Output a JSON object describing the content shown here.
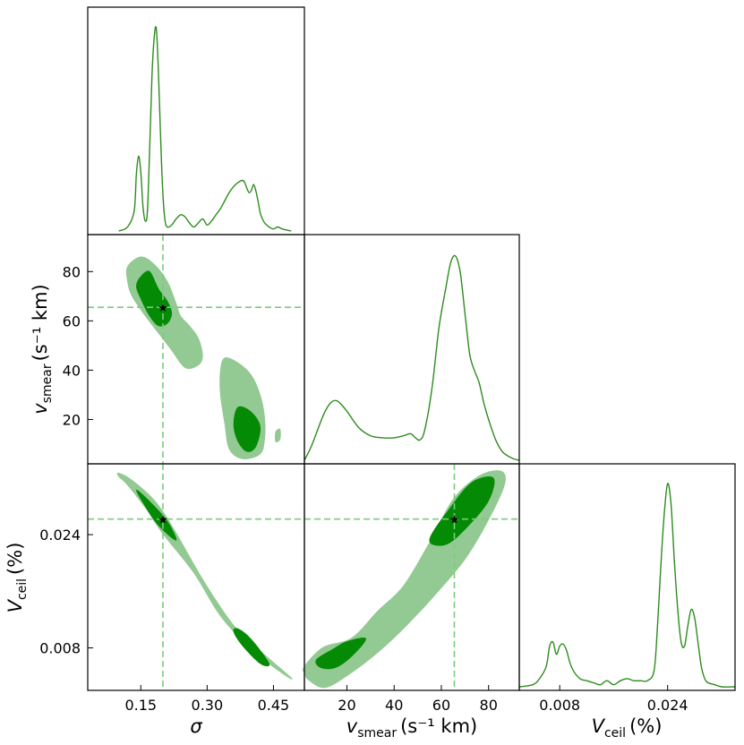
{
  "chart_data": [
    {
      "type": "line",
      "panel": "sigma-marginal",
      "x_param": "sigma",
      "xlim": [
        0.03,
        0.52
      ],
      "x": [
        0.1,
        0.12,
        0.135,
        0.14,
        0.145,
        0.15,
        0.155,
        0.16,
        0.165,
        0.17,
        0.175,
        0.18,
        0.185,
        0.19,
        0.195,
        0.2,
        0.205,
        0.21,
        0.22,
        0.23,
        0.24,
        0.25,
        0.26,
        0.27,
        0.28,
        0.29,
        0.3,
        0.31,
        0.32,
        0.33,
        0.34,
        0.35,
        0.36,
        0.37,
        0.38,
        0.385,
        0.39,
        0.395,
        0.4,
        0.405,
        0.41,
        0.415,
        0.42,
        0.425,
        0.43,
        0.435,
        0.44,
        0.45,
        0.46,
        0.47,
        0.49
      ],
      "density": [
        0.0,
        0.02,
        0.1,
        0.28,
        0.37,
        0.29,
        0.12,
        0.05,
        0.1,
        0.4,
        0.75,
        0.95,
        1.0,
        0.78,
        0.45,
        0.18,
        0.05,
        0.02,
        0.03,
        0.06,
        0.08,
        0.07,
        0.04,
        0.02,
        0.04,
        0.06,
        0.03,
        0.05,
        0.08,
        0.11,
        0.15,
        0.19,
        0.22,
        0.24,
        0.25,
        0.24,
        0.21,
        0.19,
        0.2,
        0.23,
        0.2,
        0.15,
        0.09,
        0.06,
        0.04,
        0.03,
        0.02,
        0.01,
        0.02,
        0.01,
        0.0
      ]
    },
    {
      "type": "line",
      "panel": "vsmear-marginal",
      "x_param": "vsmear",
      "xlim": [
        2,
        93
      ],
      "x": [
        2,
        5,
        10,
        13,
        16,
        20,
        25,
        30,
        35,
        40,
        44,
        47,
        49,
        51,
        53,
        56,
        59,
        62,
        64,
        66,
        68,
        70,
        72,
        74,
        76,
        78,
        80,
        83,
        86,
        90,
        93
      ],
      "density": [
        0.0,
        0.07,
        0.22,
        0.28,
        0.29,
        0.24,
        0.16,
        0.12,
        0.11,
        0.11,
        0.12,
        0.13,
        0.11,
        0.1,
        0.15,
        0.35,
        0.65,
        0.85,
        0.97,
        1.0,
        0.92,
        0.72,
        0.52,
        0.44,
        0.38,
        0.28,
        0.2,
        0.1,
        0.04,
        0.01,
        0.0
      ]
    },
    {
      "type": "line",
      "panel": "vceil-marginal",
      "x_param": "vceil",
      "xlim": [
        0.002,
        0.034
      ],
      "x": [
        0.002,
        0.004,
        0.005,
        0.006,
        0.0065,
        0.007,
        0.0075,
        0.008,
        0.0085,
        0.009,
        0.0095,
        0.01,
        0.011,
        0.012,
        0.013,
        0.014,
        0.015,
        0.016,
        0.017,
        0.018,
        0.019,
        0.02,
        0.021,
        0.022,
        0.0225,
        0.023,
        0.0235,
        0.024,
        0.0245,
        0.025,
        0.0255,
        0.026,
        0.0265,
        0.027,
        0.0275,
        0.028,
        0.0285,
        0.029,
        0.0295,
        0.03,
        0.031,
        0.032,
        0.034
      ],
      "density": [
        0.0,
        0.01,
        0.04,
        0.1,
        0.2,
        0.22,
        0.16,
        0.2,
        0.21,
        0.18,
        0.12,
        0.08,
        0.04,
        0.03,
        0.02,
        0.01,
        0.03,
        0.01,
        0.03,
        0.04,
        0.03,
        0.03,
        0.03,
        0.08,
        0.3,
        0.6,
        0.85,
        1.0,
        0.9,
        0.62,
        0.38,
        0.22,
        0.2,
        0.3,
        0.38,
        0.34,
        0.22,
        0.1,
        0.04,
        0.02,
        0.01,
        0.0,
        0.0
      ]
    },
    {
      "type": "scatter",
      "panel": "sigma-vs-vsmear",
      "x_param": "sigma",
      "y_param": "vsmear",
      "xlim": [
        0.03,
        0.52
      ],
      "ylim": [
        2,
        95
      ],
      "truth": {
        "x": 0.2,
        "y": 65.5
      },
      "regions": [
        {
          "level": "outer",
          "points": [
            [
              0.12,
              82
            ],
            [
              0.15,
              86
            ],
            [
              0.18,
              83
            ],
            [
              0.21,
              76
            ],
            [
              0.23,
              67
            ],
            [
              0.24,
              62
            ],
            [
              0.26,
              58
            ],
            [
              0.28,
              53
            ],
            [
              0.29,
              46
            ],
            [
              0.28,
              42
            ],
            [
              0.25,
              41
            ],
            [
              0.22,
              48
            ],
            [
              0.19,
              55
            ],
            [
              0.16,
              62
            ],
            [
              0.13,
              70
            ],
            [
              0.12,
              76
            ]
          ]
        },
        {
          "level": "outer",
          "points": [
            [
              0.34,
              45
            ],
            [
              0.37,
              43
            ],
            [
              0.4,
              38
            ],
            [
              0.42,
              30
            ],
            [
              0.43,
              21
            ],
            [
              0.43,
              12
            ],
            [
              0.42,
              6
            ],
            [
              0.38,
              4
            ],
            [
              0.35,
              8
            ],
            [
              0.34,
              18
            ],
            [
              0.33,
              30
            ],
            [
              0.33,
              40
            ]
          ]
        },
        {
          "level": "outer",
          "points": [
            [
              0.455,
              15
            ],
            [
              0.465,
              16
            ],
            [
              0.465,
              12
            ],
            [
              0.455,
              11
            ]
          ]
        },
        {
          "level": "inner",
          "points": [
            [
              0.15,
              78
            ],
            [
              0.17,
              80
            ],
            [
              0.19,
              73
            ],
            [
              0.21,
              68
            ],
            [
              0.22,
              63
            ],
            [
              0.21,
              59
            ],
            [
              0.19,
              58
            ],
            [
              0.17,
              62
            ],
            [
              0.15,
              69
            ],
            [
              0.14,
              74
            ]
          ]
        },
        {
          "level": "inner",
          "points": [
            [
              0.37,
              25
            ],
            [
              0.4,
              23
            ],
            [
              0.42,
              17
            ],
            [
              0.41,
              9
            ],
            [
              0.39,
              7
            ],
            [
              0.37,
              11
            ],
            [
              0.36,
              18
            ]
          ]
        }
      ],
      "x_ticks": [
        "0.15",
        "0.30",
        "0.45"
      ],
      "y_ticks": [
        "20",
        "40",
        "60",
        "80"
      ],
      "ylabel": {
        "main": "v",
        "sub": "smear",
        "unit": "(s⁻¹ km)"
      }
    },
    {
      "type": "scatter",
      "panel": "sigma-vs-vceil",
      "x_param": "sigma",
      "y_param": "vceil",
      "xlim": [
        0.03,
        0.52
      ],
      "ylim": [
        0.002,
        0.034
      ],
      "truth": {
        "x": 0.2,
        "y": 0.0262
      },
      "regions": [
        {
          "level": "outer",
          "points": [
            [
              0.1,
              0.0327
            ],
            [
              0.13,
              0.0317
            ],
            [
              0.18,
              0.0289
            ],
            [
              0.22,
              0.0253
            ],
            [
              0.29,
              0.0177
            ],
            [
              0.36,
              0.0112
            ],
            [
              0.42,
              0.0076
            ],
            [
              0.49,
              0.0038
            ],
            [
              0.47,
              0.0044
            ],
            [
              0.4,
              0.0078
            ],
            [
              0.33,
              0.0125
            ],
            [
              0.27,
              0.0186
            ],
            [
              0.2,
              0.0241
            ],
            [
              0.16,
              0.0278
            ],
            [
              0.12,
              0.031
            ],
            [
              0.1,
              0.0322
            ]
          ]
        },
        {
          "level": "inner",
          "points": [
            [
              0.14,
              0.0303
            ],
            [
              0.17,
              0.0287
            ],
            [
              0.21,
              0.0259
            ],
            [
              0.23,
              0.0232
            ],
            [
              0.19,
              0.0253
            ],
            [
              0.16,
              0.028
            ]
          ]
        },
        {
          "level": "inner",
          "points": [
            [
              0.37,
              0.0107
            ],
            [
              0.4,
              0.0092
            ],
            [
              0.44,
              0.0058
            ],
            [
              0.42,
              0.0058
            ],
            [
              0.38,
              0.0083
            ],
            [
              0.36,
              0.0103
            ]
          ]
        }
      ],
      "x_ticks": [
        "0.15",
        "0.30",
        "0.45"
      ],
      "y_ticks": [
        "0.008",
        "0.024"
      ],
      "xlabel": "σ",
      "ylabel": {
        "main": "V",
        "sub": "ceil",
        "unit": "(%)"
      }
    },
    {
      "type": "scatter",
      "panel": "vsmear-vs-vceil",
      "x_param": "vsmear",
      "y_param": "vceil",
      "xlim": [
        2,
        93
      ],
      "ylim": [
        0.002,
        0.034
      ],
      "truth": {
        "x": 65.5,
        "y": 0.0262
      },
      "regions": [
        {
          "level": "outer",
          "points": [
            [
              2,
              0.0054
            ],
            [
              10,
              0.0081
            ],
            [
              22,
              0.0094
            ],
            [
              33,
              0.0132
            ],
            [
              44,
              0.0168
            ],
            [
              55,
              0.0229
            ],
            [
              65,
              0.029
            ],
            [
              76,
              0.0323
            ],
            [
              85,
              0.033
            ],
            [
              87,
              0.0314
            ],
            [
              82,
              0.0274
            ],
            [
              71,
              0.021
            ],
            [
              59,
              0.0161
            ],
            [
              46,
              0.0114
            ],
            [
              34,
              0.0076
            ],
            [
              22,
              0.0045
            ],
            [
              11,
              0.0024
            ],
            [
              4,
              0.0034
            ],
            [
              2,
              0.0044
            ]
          ]
        },
        {
          "level": "inner",
          "points": [
            [
              7,
              0.0063
            ],
            [
              14,
              0.0078
            ],
            [
              20,
              0.0089
            ],
            [
              28,
              0.0093
            ],
            [
              22,
              0.0068
            ],
            [
              15,
              0.0052
            ],
            [
              9,
              0.0052
            ]
          ]
        },
        {
          "level": "inner",
          "points": [
            [
              55,
              0.0233
            ],
            [
              64,
              0.0279
            ],
            [
              73,
              0.0314
            ],
            [
              82,
              0.032
            ],
            [
              80,
              0.0288
            ],
            [
              71,
              0.0251
            ],
            [
              62,
              0.0226
            ]
          ]
        }
      ],
      "x_ticks": [
        "20",
        "40",
        "60",
        "80"
      ],
      "xlabel": {
        "main": "v",
        "sub": "smear",
        "unit": "(s⁻¹ km)"
      }
    }
  ],
  "bottom_right_axis": {
    "x_ticks": [
      "0.008",
      "0.024"
    ],
    "xlabel": {
      "main": "V",
      "sub": "ceil",
      "unit": "(%)"
    }
  },
  "colors": {
    "line": "#2e8b1f",
    "contour_outer": "#93c993",
    "contour_inner": "#058a05",
    "truth_line": "#7ccb7c",
    "truth_marker": "#000000"
  }
}
